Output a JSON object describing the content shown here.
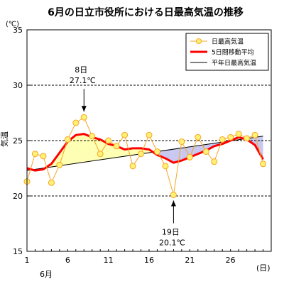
{
  "chart_data": {
    "type": "line",
    "title": "6月の日立市役所における日最高気温の推移",
    "ylabel": "気温",
    "y_unit": "(℃)",
    "x_unit": "(日)",
    "x_month_label": "6月",
    "ylim": [
      15,
      35
    ],
    "xlim": [
      1,
      31
    ],
    "yticks": [
      15,
      20,
      25,
      30,
      35
    ],
    "xticks": [
      1,
      6,
      11,
      16,
      21,
      26
    ],
    "gridlines": [
      20,
      25,
      30
    ],
    "legend_position": "top-right",
    "colors": {
      "daily_max": "#f5a623",
      "daily_max_marker": "#fff176",
      "moving_avg": "#ff0000",
      "normal": "#000000",
      "fill_above": "#ffffb3",
      "fill_below": "#c8c8f0"
    },
    "series": [
      {
        "name": "日最高気温",
        "x": [
          1,
          2,
          3,
          4,
          5,
          6,
          7,
          8,
          9,
          10,
          11,
          12,
          13,
          14,
          15,
          16,
          17,
          18,
          19,
          20,
          21,
          22,
          23,
          24,
          25,
          26,
          27,
          28,
          29,
          30
        ],
        "values": [
          21.3,
          23.8,
          23.6,
          21.2,
          22.8,
          25.1,
          26.6,
          27.1,
          25.4,
          23.8,
          25.0,
          24.5,
          25.5,
          22.7,
          23.8,
          25.5,
          24.0,
          22.7,
          20.1,
          24.9,
          23.5,
          25.3,
          24.0,
          23.1,
          25.1,
          25.3,
          25.6,
          25.2,
          25.5,
          22.9
        ]
      },
      {
        "name": "5日間移動平均",
        "x": [
          1,
          2,
          3,
          4,
          5,
          6,
          7,
          8,
          9,
          10,
          11,
          12,
          13,
          14,
          15,
          16,
          17,
          18,
          19,
          20,
          21,
          22,
          23,
          24,
          25,
          26,
          27,
          28,
          29,
          30
        ],
        "values": [
          22.5,
          22.3,
          22.4,
          22.9,
          23.9,
          24.9,
          25.5,
          25.6,
          25.3,
          25.1,
          24.7,
          24.5,
          24.2,
          24.3,
          24.3,
          24.2,
          23.7,
          23.4,
          23.0,
          23.2,
          23.5,
          23.8,
          24.1,
          24.5,
          24.7,
          25.0,
          25.3,
          25.1,
          24.6,
          23.3
        ]
      },
      {
        "name": "平年日最高気温",
        "x": [
          1,
          30
        ],
        "values": [
          22.3,
          25.4
        ]
      }
    ],
    "annotations": [
      {
        "day": 8,
        "value": 27.1,
        "label_day": "8日",
        "label_temp": "27.1℃",
        "position": "above"
      },
      {
        "day": 19,
        "value": 20.1,
        "label_day": "19日",
        "label_temp": "20.1℃",
        "position": "below"
      }
    ]
  }
}
